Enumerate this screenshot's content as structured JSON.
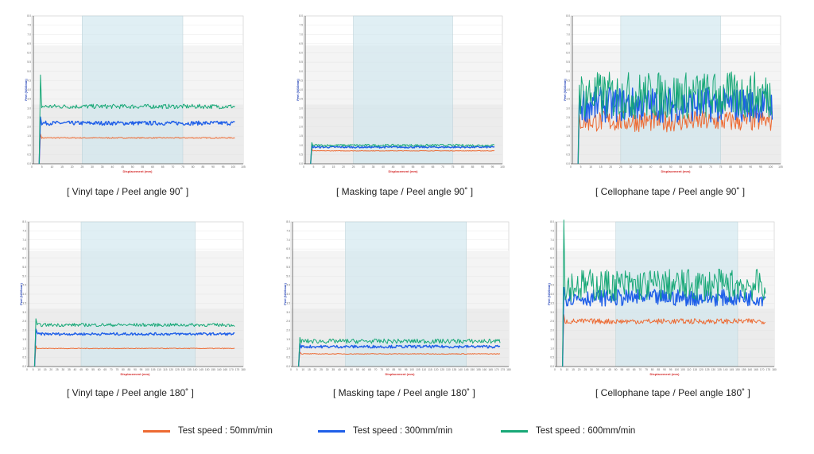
{
  "legend": [
    {
      "label": "Test speed : 50mm/min",
      "color": "#ed6a32"
    },
    {
      "label": "Test speed : 300mm/min",
      "color": "#1f5fe8"
    },
    {
      "label": "Test speed : 600mm/min",
      "color": "#18a877"
    }
  ],
  "chart_data": [
    {
      "type": "line",
      "title": "[ Vinyl tape / Peel angle 90˚ ]",
      "xlabel": "Displacement (mm)",
      "ylabel": "Peel (N/10mm)",
      "x_ticks": [
        "0",
        "5",
        "10",
        "15",
        "20",
        "25",
        "30",
        "35",
        "40",
        "45",
        "50",
        "55",
        "60",
        "65",
        "70",
        "75",
        "80",
        "85",
        "90",
        "95",
        "100",
        "105"
      ],
      "xlim": [
        0,
        105
      ],
      "ylim": [
        0,
        8
      ],
      "shaded_region": [
        25,
        75
      ],
      "series": [
        {
          "name": "Test speed : 50mm/min",
          "level": 1.4,
          "noise": 0.02
        },
        {
          "name": "Test speed : 300mm/min",
          "level": 2.2,
          "noise": 0.05
        },
        {
          "name": "Test speed : 600mm/min",
          "level": 3.1,
          "noise": 0.04
        }
      ]
    },
    {
      "type": "line",
      "title": "[ Masking tape / Peel angle 90˚ ]",
      "xlabel": "Displacement (mm)",
      "ylabel": "Peel (N/10mm)",
      "x_ticks": [
        "0",
        "5",
        "10",
        "15",
        "20",
        "25",
        "30",
        "35",
        "40",
        "45",
        "50",
        "55",
        "60",
        "65",
        "70",
        "75",
        "80",
        "85",
        "90",
        "95",
        "100"
      ],
      "xlim": [
        0,
        100
      ],
      "ylim": [
        0,
        8
      ],
      "shaded_region": [
        25,
        75
      ],
      "series": [
        {
          "name": "Test speed : 50mm/min",
          "level": 0.7,
          "noise": 0.02
        },
        {
          "name": "Test speed : 300mm/min",
          "level": 0.9,
          "noise": 0.05
        },
        {
          "name": "Test speed : 600mm/min",
          "level": 1.0,
          "noise": 0.06
        }
      ]
    },
    {
      "type": "line",
      "title": "[ Cellophane tape / Peel angle 90˚ ]",
      "xlabel": "Displacement (mm)",
      "ylabel": "Peel (N/10mm)",
      "x_ticks": [
        "0",
        "5",
        "10",
        "15",
        "20",
        "25",
        "30",
        "35",
        "40",
        "45",
        "50",
        "55",
        "60",
        "65",
        "70",
        "75",
        "80",
        "85",
        "90",
        "95",
        "100",
        "105"
      ],
      "xlim": [
        0,
        105
      ],
      "ylim": [
        0,
        8
      ],
      "shaded_region": [
        25,
        75
      ],
      "series": [
        {
          "name": "Test speed : 50mm/min",
          "level": 2.3,
          "noise": 0.25
        },
        {
          "name": "Test speed : 300mm/min",
          "level": 3.2,
          "noise": 0.3
        },
        {
          "name": "Test speed : 600mm/min",
          "level": 3.7,
          "noise": 0.35
        }
      ]
    },
    {
      "type": "line",
      "title": "[ Vinyl tape / Peel angle 180˚ ]",
      "xlabel": "Displacement (mm)",
      "ylabel": "Peel (N/10mm)",
      "x_ticks": [
        "0",
        "5",
        "10",
        "15",
        "20",
        "25",
        "30",
        "35",
        "40",
        "45",
        "50",
        "55",
        "60",
        "65",
        "70",
        "75",
        "80",
        "85",
        "90",
        "95",
        "100",
        "105",
        "110",
        "115",
        "120",
        "125",
        "130",
        "135",
        "140",
        "145",
        "150",
        "155",
        "160",
        "165",
        "170",
        "175",
        "180"
      ],
      "xlim": [
        0,
        180
      ],
      "ylim": [
        0,
        8
      ],
      "shaded_region": [
        45,
        140
      ],
      "series": [
        {
          "name": "Test speed : 50mm/min",
          "level": 1.0,
          "noise": 0.02
        },
        {
          "name": "Test speed : 300mm/min",
          "level": 1.8,
          "noise": 0.04
        },
        {
          "name": "Test speed : 600mm/min",
          "level": 2.3,
          "noise": 0.04
        }
      ]
    },
    {
      "type": "line",
      "title": "[ Masking tape / Peel angle 180˚ ]",
      "xlabel": "Displacement (mm)",
      "ylabel": "Peel (N/10mm)",
      "x_ticks": [
        "0",
        "5",
        "10",
        "15",
        "20",
        "25",
        "30",
        "35",
        "40",
        "45",
        "50",
        "55",
        "60",
        "65",
        "70",
        "75",
        "80",
        "85",
        "90",
        "95",
        "100",
        "105",
        "110",
        "115",
        "120",
        "125",
        "130",
        "135",
        "140",
        "145",
        "150",
        "155",
        "160",
        "165",
        "170",
        "175",
        "180"
      ],
      "xlim": [
        0,
        180
      ],
      "ylim": [
        0,
        8
      ],
      "shaded_region": [
        45,
        145
      ],
      "series": [
        {
          "name": "Test speed : 50mm/min",
          "level": 0.7,
          "noise": 0.03
        },
        {
          "name": "Test speed : 300mm/min",
          "level": 1.1,
          "noise": 0.07
        },
        {
          "name": "Test speed : 600mm/min",
          "level": 1.4,
          "noise": 0.09
        }
      ]
    },
    {
      "type": "line",
      "title": "[ Cellophane tape / Peel angle 180˚ ]",
      "xlabel": "Displacement (mm)",
      "ylabel": "Peel (N/10mm)",
      "x_ticks": [
        "0",
        "5",
        "10",
        "15",
        "20",
        "25",
        "30",
        "35",
        "40",
        "45",
        "50",
        "55",
        "60",
        "65",
        "70",
        "75",
        "80",
        "85",
        "90",
        "95",
        "100",
        "105",
        "110",
        "115",
        "120",
        "125",
        "130",
        "135",
        "140",
        "145",
        "150",
        "155",
        "160",
        "165",
        "170",
        "175",
        "180"
      ],
      "xlim": [
        0,
        180
      ],
      "ylim": [
        0,
        8
      ],
      "shaded_region": [
        50,
        150
      ],
      "series": [
        {
          "name": "Test speed : 50mm/min",
          "level": 2.5,
          "noise": 0.06
        },
        {
          "name": "Test speed : 300mm/min",
          "level": 3.8,
          "noise": 0.12
        },
        {
          "name": "Test speed : 600mm/min",
          "level": 4.5,
          "noise": 0.2
        }
      ]
    }
  ]
}
